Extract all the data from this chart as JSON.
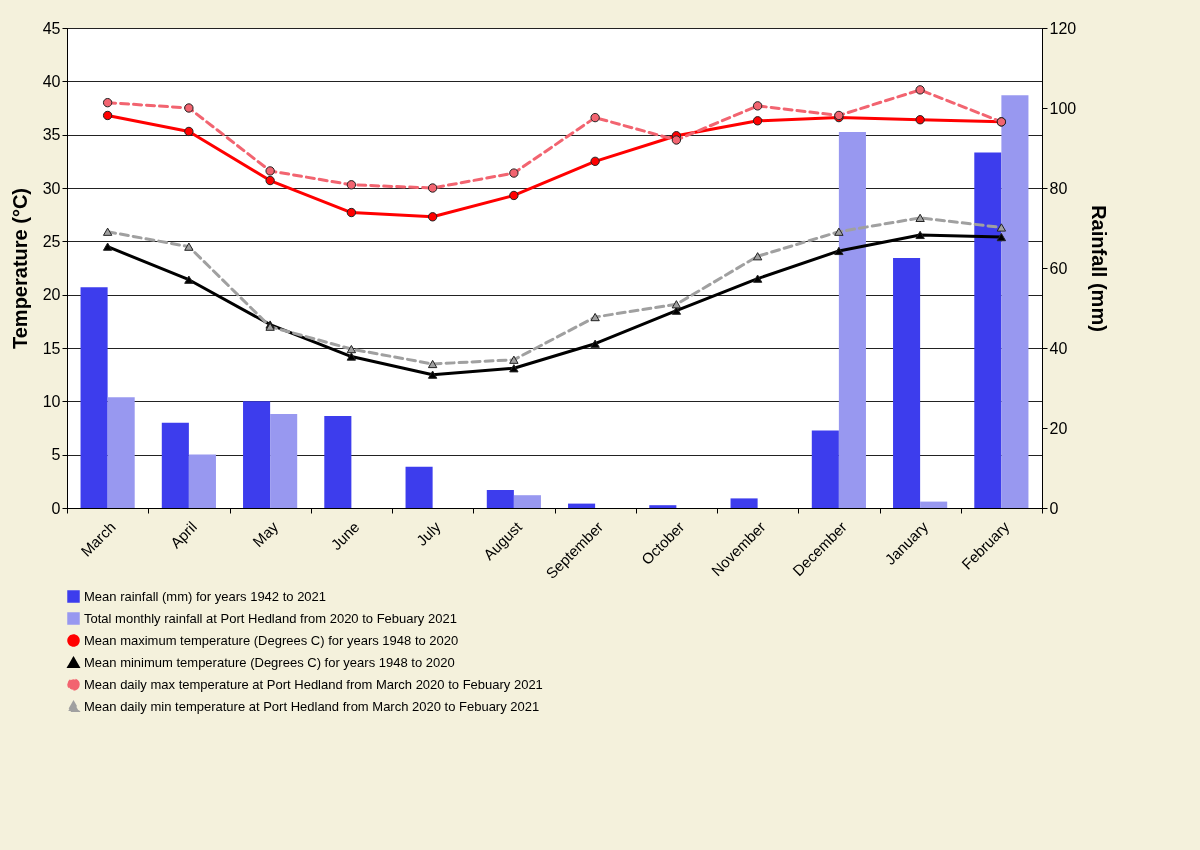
{
  "chart_data": {
    "type": "line",
    "categories": [
      "March",
      "April",
      "May",
      "June",
      "July",
      "August",
      "September",
      "October",
      "November",
      "December",
      "January",
      "February"
    ],
    "ylabel": "Temperature (°C)",
    "y2label": "Rainfall (mm)",
    "ylim": [
      0,
      45
    ],
    "yticks": [
      0,
      5,
      10,
      15,
      20,
      25,
      30,
      35,
      40,
      45
    ],
    "y2lim": [
      0,
      120
    ],
    "y2ticks": [
      0,
      20,
      40,
      60,
      80,
      100,
      120
    ],
    "grid": "y",
    "legend": "bottom",
    "series": [
      {
        "name": "Mean rainfall (mm) for years 1942 to 2021",
        "type": "bar",
        "axis": "y2",
        "color": "#3d3ded",
        "values": [
          55.2,
          21.3,
          26.7,
          23.0,
          10.3,
          4.5,
          1.1,
          0.7,
          2.4,
          19.4,
          62.5,
          88.9
        ]
      },
      {
        "name": "Total monthly rainfall at Port Hedland from 2020 to Febuary 2021",
        "type": "bar",
        "axis": "y2",
        "color": "#9898f0",
        "values": [
          27.7,
          13.4,
          23.5,
          0,
          0,
          3.2,
          0,
          0,
          0,
          94.0,
          1.6,
          103.2
        ]
      },
      {
        "name": "Mean maximum temperature (Degrees C) for years 1948 to 2020",
        "color": "#ff0000",
        "marker": "circle",
        "line_style": "solid",
        "values": [
          36.8,
          35.3,
          30.7,
          27.7,
          27.3,
          29.3,
          32.5,
          34.9,
          36.3,
          36.6,
          36.4,
          36.2
        ]
      },
      {
        "name": "Mean minimum temperature (Degrees C) for years 1948 to 2020",
        "color": "#000000",
        "marker": "triangle",
        "line_style": "solid",
        "values": [
          24.5,
          21.4,
          17.2,
          14.2,
          12.5,
          13.1,
          15.4,
          18.5,
          21.5,
          24.1,
          25.6,
          25.4
        ]
      },
      {
        "name": "Mean daily max temperature at Port Hedland from March 2020 to Febuary 2021",
        "color": "#f26470",
        "marker": "circle",
        "line_style": "dashed",
        "values": [
          38.0,
          37.5,
          31.6,
          30.3,
          30.0,
          31.4,
          36.6,
          34.5,
          37.7,
          36.8,
          39.2,
          36.2
        ]
      },
      {
        "name": "Mean daily min temperature at Port Hedland from March 2020 to Febuary 2021",
        "color": "#a0a0a0",
        "marker": "triangle",
        "line_style": "dashed",
        "values": [
          25.9,
          24.5,
          17.0,
          14.9,
          13.5,
          13.9,
          17.9,
          19.1,
          23.6,
          25.9,
          27.2,
          26.3
        ]
      }
    ]
  }
}
